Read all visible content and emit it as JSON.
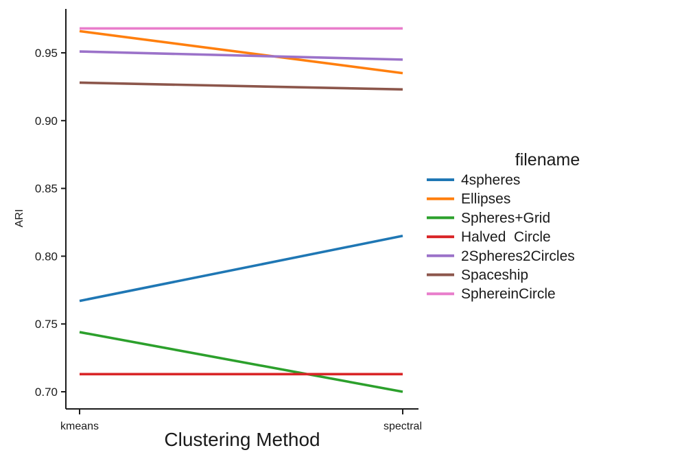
{
  "figure": {
    "background_color": "#ffffff",
    "axis_color": "#1a1a1a",
    "text_color": "#1a1a1a"
  },
  "chart_data": {
    "type": "line",
    "title": "",
    "xlabel": "Clustering Method",
    "ylabel": "ARI",
    "categories": [
      "kmeans",
      "spectral"
    ],
    "y_tick_labels": [
      "0.95",
      "0.90",
      "0.85",
      "0.80",
      "0.75",
      "0.70"
    ],
    "ylim": [
      0.687,
      0.982
    ],
    "grid": false,
    "legend_title": "filename",
    "legend_position": "right",
    "series": [
      {
        "name": "4spheres",
        "color": "#1f77b4",
        "values": [
          0.767,
          0.815
        ]
      },
      {
        "name": "Ellipses",
        "color": "#ff7f0e",
        "values": [
          0.966,
          0.935
        ]
      },
      {
        "name": "Spheres+Grid",
        "color": "#2ca02c",
        "values": [
          0.744,
          0.7
        ]
      },
      {
        "name": "Halved  Circle",
        "color": "#d92527",
        "values": [
          0.713,
          0.713
        ]
      },
      {
        "name": "2Spheres2Circles",
        "color": "#9b72c9",
        "values": [
          0.951,
          0.945
        ]
      },
      {
        "name": "Spaceship",
        "color": "#8c564b",
        "values": [
          0.928,
          0.923
        ]
      },
      {
        "name": "SphereinCircle",
        "color": "#e97dcb",
        "values": [
          0.968,
          0.968
        ]
      }
    ]
  }
}
